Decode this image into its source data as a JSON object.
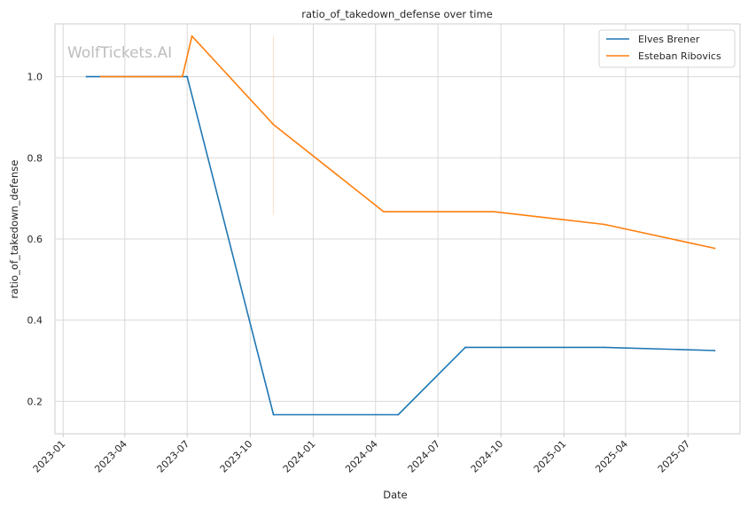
{
  "chart_data": {
    "type": "line",
    "title": "ratio_of_takedown_defense over time",
    "xlabel": "Date",
    "ylabel": "ratio_of_takedown_defense",
    "watermark": "WolfTickets.AI",
    "x_ticks": [
      "2023-01",
      "2023-04",
      "2023-07",
      "2023-10",
      "2024-01",
      "2024-04",
      "2024-07",
      "2024-10",
      "2025-01",
      "2025-04",
      "2025-07"
    ],
    "y_ticks": [
      "0.2",
      "0.4",
      "0.6",
      "0.8",
      "1.0"
    ],
    "xlim": [
      "2022-12-20",
      "2025-09-15"
    ],
    "ylim": [
      0.12,
      1.13
    ],
    "grid": true,
    "legend_position": "top-right",
    "series": [
      {
        "name": "Elves Brener",
        "color": "#1f77b4",
        "points": [
          {
            "x": "2023-02-04",
            "y": 1.0
          },
          {
            "x": "2023-07-01",
            "y": 1.0
          },
          {
            "x": "2023-11-04",
            "y": 0.167
          },
          {
            "x": "2024-05-04",
            "y": 0.167
          },
          {
            "x": "2024-08-10",
            "y": 0.333
          },
          {
            "x": "2025-03-01",
            "y": 0.333
          },
          {
            "x": "2025-08-09",
            "y": 0.325
          }
        ]
      },
      {
        "name": "Esteban Ribovics",
        "color": "#ff7f0e",
        "points": [
          {
            "x": "2023-02-25",
            "y": 1.0
          },
          {
            "x": "2023-06-24",
            "y": 1.0
          },
          {
            "x": "2023-07-08",
            "y": 1.1
          },
          {
            "x": "2023-11-04",
            "y": 0.882
          },
          {
            "x": "2024-04-13",
            "y": 0.667
          },
          {
            "x": "2024-09-21",
            "y": 0.667
          },
          {
            "x": "2025-03-01",
            "y": 0.636
          },
          {
            "x": "2025-08-09",
            "y": 0.577
          }
        ]
      }
    ],
    "annotations": [
      {
        "type": "vline",
        "x": "2023-11-04",
        "y_range": [
          0.66,
          1.1
        ],
        "color": "#ff7f0e"
      }
    ]
  }
}
